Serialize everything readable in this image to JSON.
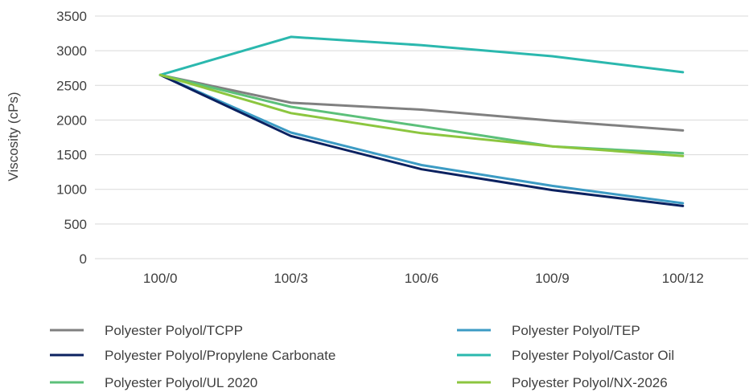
{
  "chart_data": {
    "type": "line",
    "ylabel": "Viscosity (cPs)",
    "xlabel": "",
    "categories": [
      "100/0",
      "100/3",
      "100/6",
      "100/9",
      "100/12"
    ],
    "ylim": [
      0,
      3500
    ],
    "yticks": [
      0,
      500,
      1000,
      1500,
      2000,
      2500,
      3000,
      3500
    ],
    "grid": "horizontal",
    "legend_position": "bottom",
    "series": [
      {
        "name": "Polyester Polyol/TCPP",
        "color": "#808080",
        "values": [
          2650,
          2250,
          2150,
          1990,
          1850
        ]
      },
      {
        "name": "Polyester Polyol/TEP",
        "color": "#3C9BC4",
        "values": [
          2650,
          1820,
          1350,
          1050,
          800
        ]
      },
      {
        "name": "Polyester Polyol/Propylene Carbonate",
        "color": "#0B2160",
        "values": [
          2650,
          1770,
          1290,
          990,
          760
        ]
      },
      {
        "name": "Polyester Polyol/Castor Oil",
        "color": "#2BB8AE",
        "values": [
          2650,
          3200,
          3080,
          2920,
          2690
        ]
      },
      {
        "name": "Polyester Polyol/UL 2020",
        "color": "#5CC07A",
        "values": [
          2650,
          2190,
          1910,
          1620,
          1520
        ]
      },
      {
        "name": "Polyester Polyol/NX-2026",
        "color": "#8CC63F",
        "values": [
          2650,
          2100,
          1810,
          1620,
          1480
        ]
      }
    ]
  }
}
